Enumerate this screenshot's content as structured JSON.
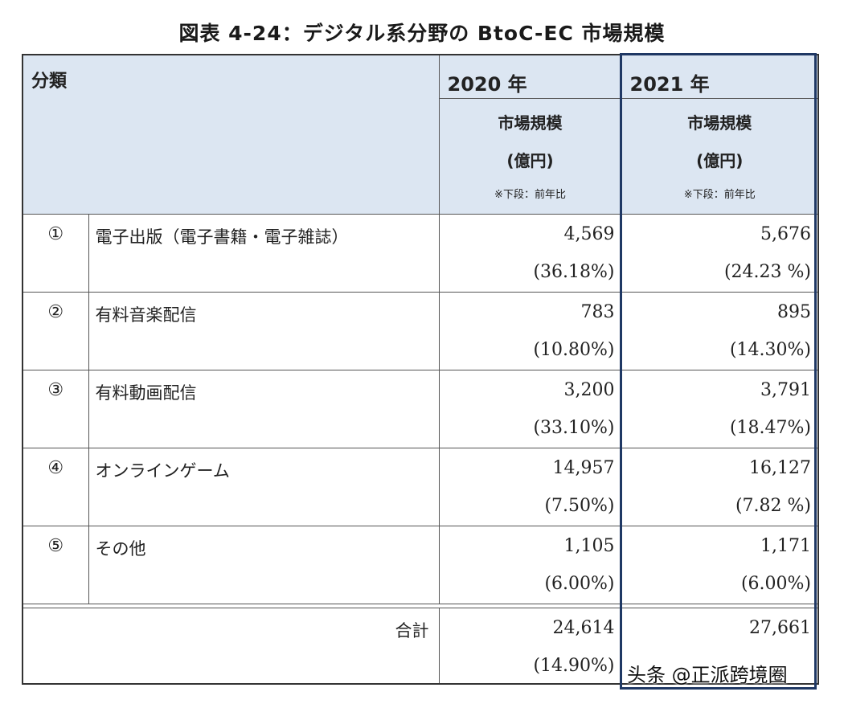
{
  "title": "図表 4-24：デジタル系分野の BtoC-EC 市場規模",
  "header": {
    "category_label": "分類",
    "year1": "2020 年",
    "year2": "2021 年",
    "sub_line1": "市場規模",
    "sub_line2": "(億円)",
    "sub_note": "※下段：前年比"
  },
  "rows": [
    {
      "num": "①",
      "name": "電子出版（電子書籍・電子雑誌）",
      "v2020": "4,569",
      "p2020": "(36.18%)",
      "v2021": "5,676",
      "p2021": "(24.23 %)"
    },
    {
      "num": "②",
      "name": "有料音楽配信",
      "v2020": "783",
      "p2020": "(10.80%)",
      "v2021": "895",
      "p2021": "(14.30%)"
    },
    {
      "num": "③",
      "name": "有料動画配信",
      "v2020": "3,200",
      "p2020": "(33.10%)",
      "v2021": "3,791",
      "p2021": "(18.47%)"
    },
    {
      "num": "④",
      "name": "オンラインゲーム",
      "v2020": "14,957",
      "p2020": "(7.50%)",
      "v2021": "16,127",
      "p2021": "(7.82 %)"
    },
    {
      "num": "⑤",
      "name": "その他",
      "v2020": "1,105",
      "p2020": "(6.00%)",
      "v2021": "1,171",
      "p2021": "(6.00%)"
    }
  ],
  "total": {
    "label": "合計",
    "v2020": "24,614",
    "p2020": "(14.90%)",
    "v2021": "27,661"
  },
  "watermark": "头条 @正派跨境圈"
}
